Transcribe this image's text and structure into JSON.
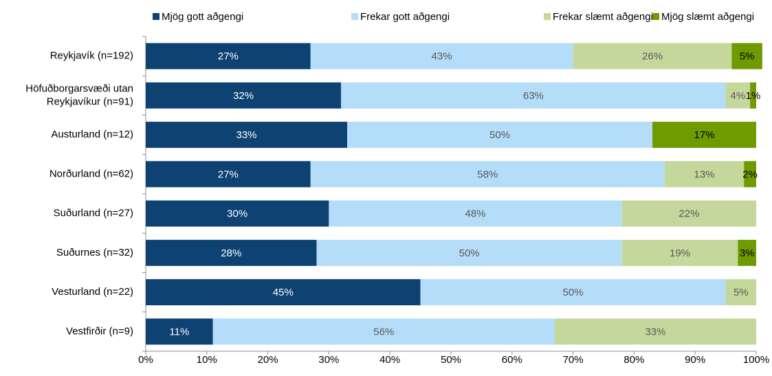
{
  "chart_data": {
    "type": "stacked-barh",
    "categories": [
      "Reykjavík (n=192)",
      "Höfuðborgarsvæði utan\nReykjavíkur (n=91)",
      "Austurland (n=12)",
      "Norðurland (n=62)",
      "Suðurland (n=27)",
      "Suðurnes (n=32)",
      "Vesturland (n=22)",
      "Vestfirðir (n=9)"
    ],
    "series": [
      {
        "name": "Mjög gott aðgengi",
        "color": "#0e4272",
        "label_color": "#ffffff",
        "values": [
          27,
          32,
          33,
          27,
          30,
          28,
          45,
          11
        ],
        "value_labels": [
          "27%",
          "32%",
          "33%",
          "27%",
          "30%",
          "28%",
          "45%",
          "11%"
        ]
      },
      {
        "name": "Frekar gott aðgengi",
        "color": "#b4ddf9",
        "label_color": "#595959",
        "values": [
          43,
          63,
          50,
          58,
          48,
          50,
          50,
          56
        ],
        "value_labels": [
          "43%",
          "63%",
          "50%",
          "58%",
          "48%",
          "50%",
          "50%",
          "56%"
        ]
      },
      {
        "name": "Frekar slæmt aðgengi",
        "color": "#c5d89c",
        "label_color": "#595959",
        "values": [
          26,
          4,
          null,
          13,
          22,
          19,
          5,
          33
        ],
        "value_labels": [
          "26%",
          "4%",
          null,
          "13%",
          "22%",
          "19%",
          "5%",
          "33%"
        ]
      },
      {
        "name": "Mjög slæmt aðgengi",
        "color": "#6f9a00",
        "label_color": "#000000",
        "values": [
          5,
          1,
          17,
          2,
          null,
          3,
          null,
          null
        ],
        "value_labels": [
          "5%",
          "1%",
          "17%",
          "2%",
          null,
          "3%",
          null,
          null
        ]
      }
    ],
    "xlim": [
      0,
      100
    ],
    "xticks": [
      {
        "value": 0,
        "label": "0%"
      },
      {
        "value": 10,
        "label": "10%"
      },
      {
        "value": 20,
        "label": "20%"
      },
      {
        "value": 30,
        "label": "30%"
      },
      {
        "value": 40,
        "label": "40%"
      },
      {
        "value": 50,
        "label": "50%"
      },
      {
        "value": 60,
        "label": "60%"
      },
      {
        "value": 70,
        "label": "70%"
      },
      {
        "value": 80,
        "label": "80%"
      },
      {
        "value": 90,
        "label": "90%"
      },
      {
        "value": 100,
        "label": "100%"
      }
    ],
    "legend": "top",
    "grid": false
  }
}
